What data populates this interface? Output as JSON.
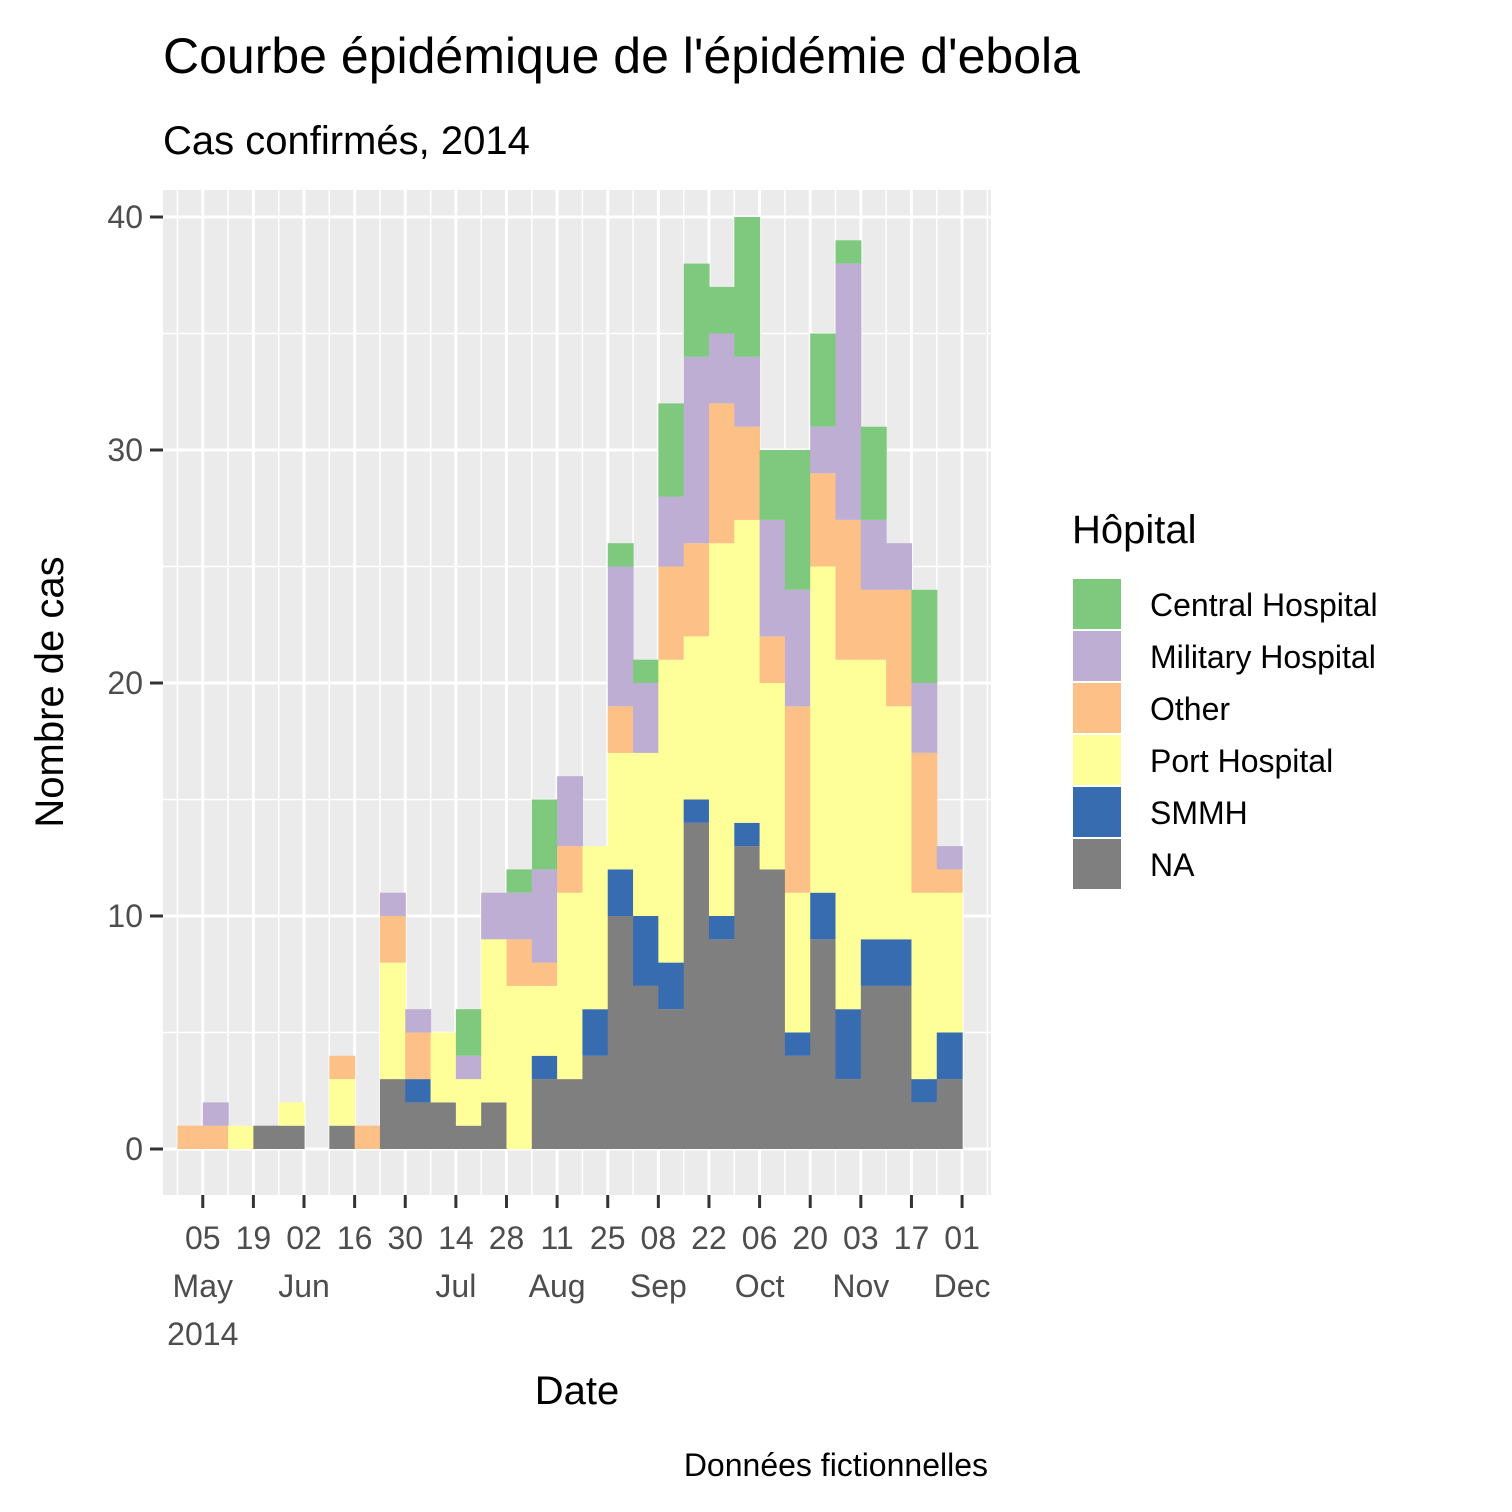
{
  "chart_data": {
    "type": "bar",
    "stacked": true,
    "title": "Courbe épidémique de l'épidémie d'ebola",
    "subtitle": "Cas confirmés, 2014",
    "xlabel": "Date",
    "ylabel": "Nombre de cas",
    "caption": "Données fictionnelles",
    "legend": {
      "title": "Hôpital",
      "position": "right"
    },
    "grid": true,
    "ylim": [
      0,
      40
    ],
    "xlim": [
      "2014-04-24",
      "2014-12-09"
    ],
    "y_ticks": [
      0,
      10,
      20,
      30,
      40
    ],
    "y_tick_labels": [
      "0",
      "10",
      "20",
      "30",
      "40"
    ],
    "x_ticks": [
      {
        "date": "2014-05-05",
        "line1": "05",
        "line2": "May",
        "line3": "2014"
      },
      {
        "date": "2014-05-19",
        "line1": "19",
        "line2": "",
        "line3": ""
      },
      {
        "date": "2014-06-02",
        "line1": "02",
        "line2": "Jun",
        "line3": ""
      },
      {
        "date": "2014-06-16",
        "line1": "16",
        "line2": "",
        "line3": ""
      },
      {
        "date": "2014-06-30",
        "line1": "30",
        "line2": "",
        "line3": ""
      },
      {
        "date": "2014-07-14",
        "line1": "14",
        "line2": "Jul",
        "line3": ""
      },
      {
        "date": "2014-07-28",
        "line1": "28",
        "line2": "",
        "line3": ""
      },
      {
        "date": "2014-08-11",
        "line1": "11",
        "line2": "Aug",
        "line3": ""
      },
      {
        "date": "2014-08-25",
        "line1": "25",
        "line2": "",
        "line3": ""
      },
      {
        "date": "2014-09-08",
        "line1": "08",
        "line2": "Sep",
        "line3": ""
      },
      {
        "date": "2014-09-22",
        "line1": "22",
        "line2": "",
        "line3": ""
      },
      {
        "date": "2014-10-06",
        "line1": "06",
        "line2": "Oct",
        "line3": ""
      },
      {
        "date": "2014-10-20",
        "line1": "20",
        "line2": "",
        "line3": ""
      },
      {
        "date": "2014-11-03",
        "line1": "03",
        "line2": "Nov",
        "line3": ""
      },
      {
        "date": "2014-11-17",
        "line1": "17",
        "line2": "",
        "line3": ""
      },
      {
        "date": "2014-12-01",
        "line1": "01",
        "line2": "Dec",
        "line3": ""
      }
    ],
    "bin_width_days": 7,
    "bin_starts": [
      "2014-04-28",
      "2014-05-05",
      "2014-05-12",
      "2014-05-19",
      "2014-05-26",
      "2014-06-02",
      "2014-06-09",
      "2014-06-16",
      "2014-06-23",
      "2014-06-30",
      "2014-07-07",
      "2014-07-14",
      "2014-07-21",
      "2014-07-28",
      "2014-08-04",
      "2014-08-11",
      "2014-08-18",
      "2014-08-25",
      "2014-09-01",
      "2014-09-08",
      "2014-09-15",
      "2014-09-22",
      "2014-09-29",
      "2014-10-06",
      "2014-10-13",
      "2014-10-20",
      "2014-10-27",
      "2014-11-03",
      "2014-11-10",
      "2014-11-17",
      "2014-11-24"
    ],
    "series": [
      {
        "name": "NA",
        "color": "#7f7f7f",
        "values": [
          0,
          0,
          0,
          1,
          1,
          0,
          1,
          0,
          3,
          2,
          2,
          1,
          2,
          0,
          3,
          3,
          4,
          10,
          7,
          6,
          14,
          9,
          13,
          12,
          4,
          9,
          3,
          7,
          7,
          2,
          3
        ]
      },
      {
        "name": "SMMH",
        "color": "#386cb0",
        "values": [
          0,
          0,
          0,
          0,
          0,
          0,
          0,
          0,
          0,
          1,
          0,
          0,
          0,
          0,
          1,
          0,
          2,
          2,
          3,
          2,
          1,
          1,
          1,
          0,
          1,
          2,
          3,
          2,
          2,
          1,
          2
        ]
      },
      {
        "name": "Port Hospital",
        "color": "#ffff99",
        "values": [
          0,
          0,
          1,
          0,
          1,
          0,
          2,
          0,
          5,
          0,
          3,
          2,
          7,
          7,
          3,
          8,
          7,
          5,
          7,
          13,
          7,
          16,
          13,
          8,
          6,
          14,
          15,
          12,
          10,
          8,
          6
        ]
      },
      {
        "name": "Other",
        "color": "#fdc086",
        "values": [
          1,
          1,
          0,
          0,
          0,
          0,
          1,
          1,
          2,
          2,
          0,
          0,
          0,
          2,
          1,
          2,
          0,
          2,
          0,
          4,
          4,
          6,
          4,
          2,
          8,
          4,
          6,
          3,
          5,
          6,
          1
        ]
      },
      {
        "name": "Military Hospital",
        "color": "#beaed4",
        "values": [
          0,
          1,
          0,
          0,
          0,
          0,
          0,
          0,
          1,
          1,
          0,
          1,
          2,
          2,
          4,
          3,
          0,
          6,
          3,
          3,
          8,
          3,
          3,
          5,
          5,
          2,
          11,
          3,
          2,
          3,
          1
        ]
      },
      {
        "name": "Central Hospital",
        "color": "#7fc97f",
        "values": [
          0,
          0,
          0,
          0,
          0,
          0,
          0,
          0,
          0,
          0,
          0,
          2,
          0,
          1,
          3,
          0,
          0,
          1,
          1,
          4,
          4,
          2,
          6,
          3,
          6,
          4,
          1,
          4,
          0,
          4,
          0
        ]
      }
    ],
    "legend_order": [
      "Central Hospital",
      "Military Hospital",
      "Other",
      "Port Hospital",
      "SMMH",
      "NA"
    ],
    "colors": {
      "panel_background": "#ebebeb",
      "gridline": "#ffffff",
      "tick_text": "#4d4d4d"
    }
  }
}
